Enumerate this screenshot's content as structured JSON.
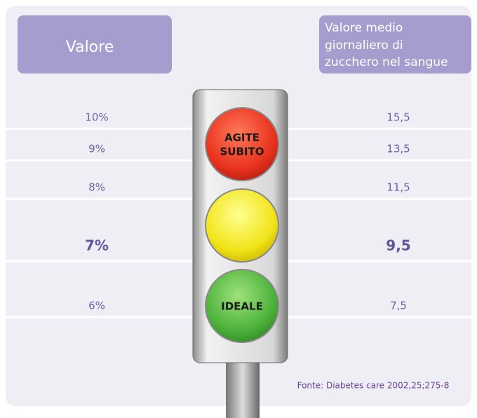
{
  "header": {
    "left": "Valore",
    "right": [
      "Valore medio",
      "giornaliero di",
      "zucchero nel sangue"
    ]
  },
  "rows": [
    [
      "10%",
      "15,5"
    ],
    [
      "9%",
      "13,5"
    ],
    [
      "8%",
      "11,5"
    ],
    [
      "7%",
      "9,5"
    ],
    [
      "6%",
      "7,5"
    ]
  ],
  "lights": {
    "red": [
      "AGITE",
      "SUBITO"
    ],
    "green": "IDEALE"
  },
  "source": "Fonte: Diabetes care 2002,25;275-8"
}
